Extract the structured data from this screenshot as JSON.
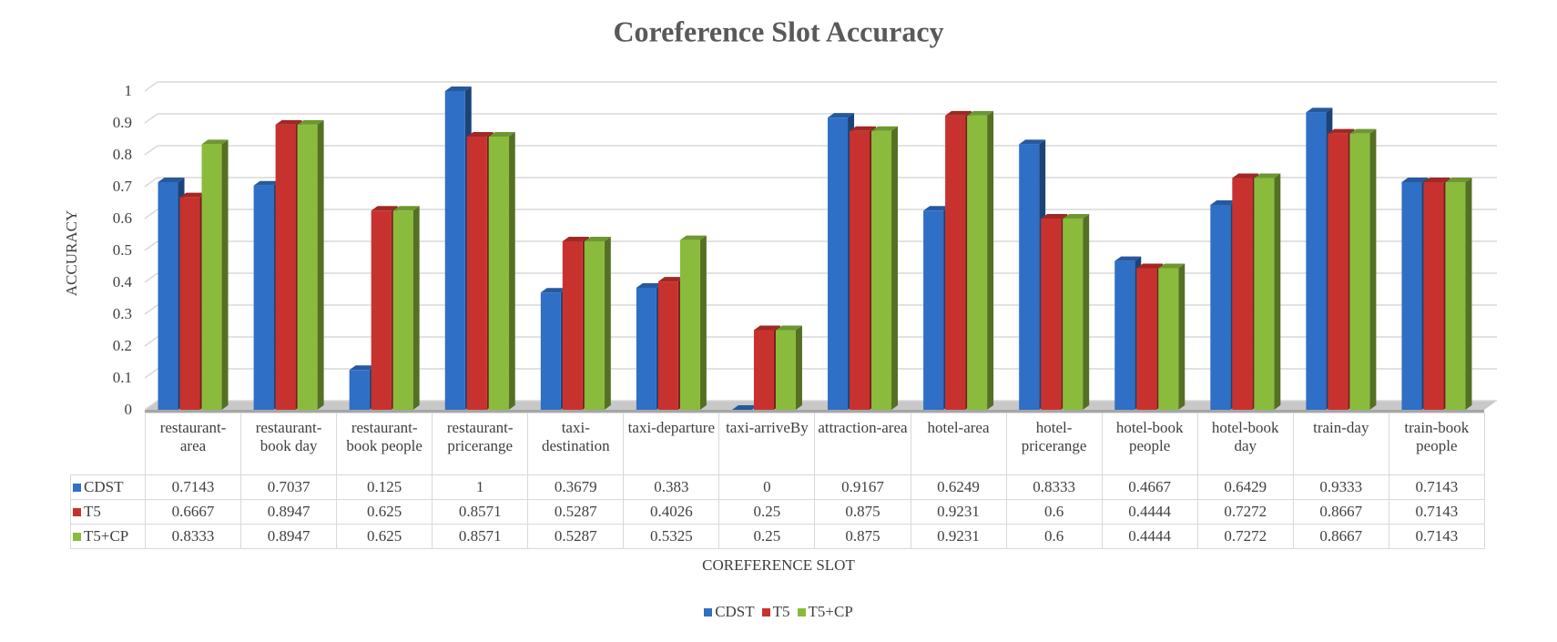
{
  "chart_data": {
    "type": "bar3d",
    "title": "Coreference Slot Accuracy",
    "x_label": "COREFERENCE SLOT",
    "y_label": "ACCURACY",
    "categories": [
      "restaurant-area",
      "restaurant-book day",
      "restaurant-book people",
      "restaurant-pricerange",
      "taxi-destination",
      "taxi-departure",
      "taxi-arriveBy",
      "attraction-area",
      "hotel-area",
      "hotel-pricerange",
      "hotel-book people",
      "hotel-book day",
      "train-day",
      "train-book people"
    ],
    "series": [
      {
        "name": "CDST",
        "color": "#2f6fc6",
        "values": [
          0.7143,
          0.7037,
          0.125,
          1,
          0.3679,
          0.383,
          0,
          0.9167,
          0.6249,
          0.8333,
          0.4667,
          0.6429,
          0.9333,
          0.7143
        ]
      },
      {
        "name": "T5",
        "color": "#c8322e",
        "values": [
          0.6667,
          0.8947,
          0.625,
          0.8571,
          0.5287,
          0.4026,
          0.25,
          0.875,
          0.9231,
          0.6,
          0.4444,
          0.7272,
          0.8667,
          0.7143
        ]
      },
      {
        "name": "T5+CP",
        "color": "#8bbb3c",
        "values": [
          0.8333,
          0.8947,
          0.625,
          0.8571,
          0.5287,
          0.5325,
          0.25,
          0.875,
          0.9231,
          0.6,
          0.4444,
          0.7272,
          0.8667,
          0.7143
        ]
      }
    ],
    "ylim": [
      0,
      1
    ],
    "yticks": [
      0,
      0.1,
      0.2,
      0.3,
      0.4,
      0.5,
      0.6,
      0.7,
      0.8,
      0.9,
      1
    ],
    "grid": true,
    "legend": "bottom",
    "data_table": true
  }
}
